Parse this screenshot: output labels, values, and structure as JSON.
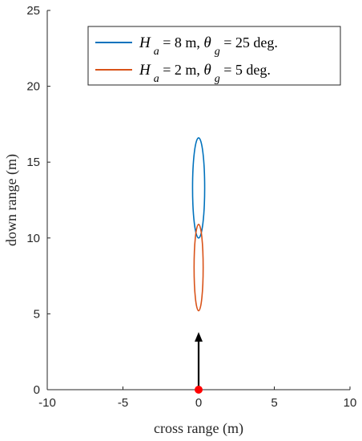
{
  "chart_data": {
    "type": "line",
    "xlabel": "cross range (m)",
    "ylabel": "down range (m)",
    "xlim": [
      -10,
      10
    ],
    "ylim": [
      0,
      25
    ],
    "xticks": [
      -10,
      -5,
      0,
      5,
      10
    ],
    "yticks": [
      0,
      5,
      10,
      15,
      20,
      25
    ],
    "x_tick_labels": [
      "-10",
      "-5",
      "0",
      "5",
      "10"
    ],
    "y_tick_labels": [
      "0",
      "5",
      "10",
      "15",
      "20",
      "25"
    ],
    "grid": false,
    "legend_position": "top-right",
    "series": [
      {
        "name": "H a = 8 m, θ g = 25 deg.",
        "legend": {
          "H": "H",
          "H_sub": "a",
          "mid": " = 8 m, ",
          "theta": "θ",
          "theta_sub": "g",
          "end": " = 25 deg."
        },
        "color": "#0072BD",
        "shape": "ellipse",
        "center": [
          0,
          13.3
        ],
        "x_range": [
          -0.4,
          0.4
        ],
        "y_range": [
          10.0,
          16.6
        ]
      },
      {
        "name": "H a = 2 m, θ g = 5 deg.",
        "legend": {
          "H": "H",
          "H_sub": "a",
          "mid": " = 2 m, ",
          "theta": "θ",
          "theta_sub": "g",
          "end": " = 5 deg."
        },
        "color": "#D95319",
        "shape": "ellipse",
        "center": [
          0,
          8.05
        ],
        "x_range": [
          -0.3,
          0.3
        ],
        "y_range": [
          5.2,
          10.9
        ]
      }
    ],
    "arrow": {
      "x": 0,
      "y_start": 0,
      "y_end": 3.8,
      "color": "#000000"
    },
    "origin_marker": {
      "x": 0,
      "y": 0,
      "color": "#FF0000"
    }
  }
}
